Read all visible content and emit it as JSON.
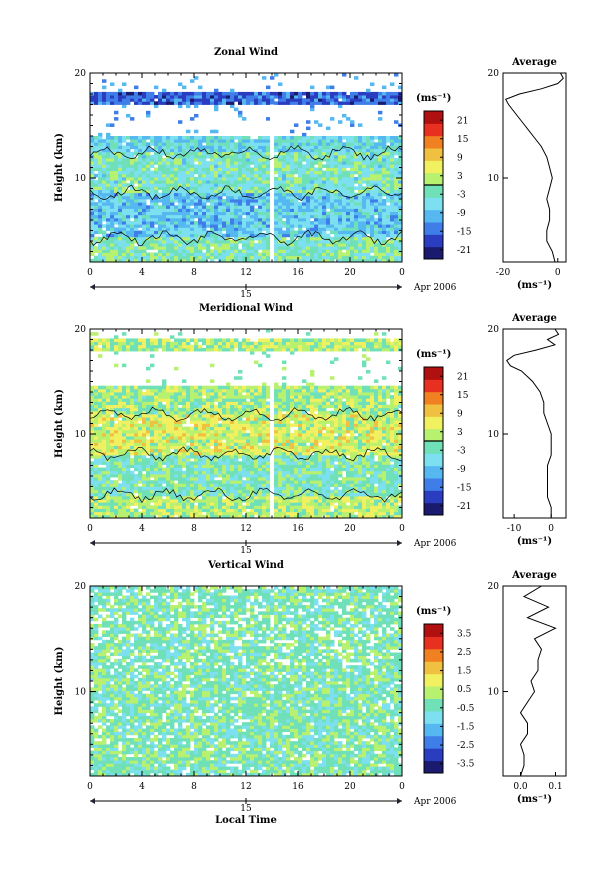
{
  "figure": {
    "x_axis_label": "Local Time",
    "date_label": "Apr 2006",
    "day_label": "15",
    "colorbar_unit": "(ms⁻¹)",
    "avg_title": "Average",
    "avg_unit": "(ms⁻¹)",
    "y_axis_label": "Height (km)"
  },
  "chart_data": [
    {
      "type": "heatmap",
      "title": "Zonal Wind",
      "ylabel": "Height (km)",
      "xlabel": "",
      "x_ticks": [
        "0",
        "4",
        "8",
        "12",
        "16",
        "20",
        "0"
      ],
      "y_ticks": [
        "10",
        "20"
      ],
      "xlim": [
        0,
        24
      ],
      "ylim": [
        2,
        20
      ],
      "colorbar_ticks": [
        "21",
        "15",
        "9",
        "3",
        "-3",
        "-9",
        "-15",
        "-21"
      ],
      "colorbar_range": [
        -24,
        24
      ],
      "contour_level": 0,
      "colormap": [
        "#1a1a6e",
        "#2a3cbf",
        "#3f7ee8",
        "#56b8f0",
        "#7de0f0",
        "#6fe0b8",
        "#b8f070",
        "#f0f060",
        "#f0c040",
        "#f08020",
        "#e83020",
        "#b01010"
      ],
      "bands": [
        {
          "from": 2,
          "to": 4.5,
          "value": -2
        },
        {
          "from": 4.5,
          "to": 8.5,
          "value": -8
        },
        {
          "from": 8.5,
          "to": 12.5,
          "value": -3
        },
        {
          "from": 12.5,
          "to": 14,
          "value": -6
        },
        {
          "from": 14,
          "to": 17,
          "value": 99
        },
        {
          "from": 17,
          "to": 18.2,
          "value": -16
        },
        {
          "from": 18.2,
          "to": 20,
          "value": 99
        }
      ],
      "average": {
        "title": "Average",
        "xlabel": "(ms⁻¹)",
        "x_ticks": [
          "-20",
          "0"
        ],
        "y_ticks": [
          "10",
          "20"
        ],
        "xlim": [
          -20,
          3
        ],
        "height": [
          2,
          3,
          4,
          5,
          6,
          7,
          8,
          9,
          10,
          11,
          12,
          13,
          14,
          15,
          16,
          17,
          17.5,
          18,
          18.5,
          19,
          19.5,
          20
        ],
        "values": [
          -1,
          -2,
          -4,
          -4,
          -3,
          -3,
          -4,
          -3,
          -2,
          -3,
          -4,
          -6,
          -9,
          -12,
          -15,
          -18,
          -19,
          -14,
          -6,
          0,
          2,
          1
        ]
      }
    },
    {
      "type": "heatmap",
      "title": "Meridional Wind",
      "ylabel": "Height (km)",
      "xlabel": "",
      "x_ticks": [
        "0",
        "4",
        "8",
        "12",
        "16",
        "20",
        "0"
      ],
      "y_ticks": [
        "10",
        "20"
      ],
      "xlim": [
        0,
        24
      ],
      "ylim": [
        2,
        20
      ],
      "colorbar_ticks": [
        "21",
        "15",
        "9",
        "3",
        "-3",
        "-9",
        "-15",
        "-21"
      ],
      "colorbar_range": [
        -24,
        24
      ],
      "contour_level": 0,
      "colormap": [
        "#1a1a6e",
        "#2a3cbf",
        "#3f7ee8",
        "#56b8f0",
        "#7de0f0",
        "#6fe0b8",
        "#b8f070",
        "#f0f060",
        "#f0c040",
        "#f08020",
        "#e83020",
        "#b01010"
      ],
      "bands": [
        {
          "from": 2,
          "to": 4,
          "value": 2
        },
        {
          "from": 4,
          "to": 8,
          "value": -2
        },
        {
          "from": 8,
          "to": 12,
          "value": 4
        },
        {
          "from": 12,
          "to": 14.5,
          "value": 1
        },
        {
          "from": 14.5,
          "to": 18,
          "value": 99
        },
        {
          "from": 18,
          "to": 19,
          "value": 2
        },
        {
          "from": 19,
          "to": 20,
          "value": 99
        }
      ],
      "average": {
        "title": "Average",
        "xlabel": "(ms⁻¹)",
        "x_ticks": [
          "-10",
          "0"
        ],
        "y_ticks": [
          "10",
          "20"
        ],
        "xlim": [
          -13,
          4
        ],
        "height": [
          2,
          3,
          4,
          5,
          6,
          7,
          8,
          9,
          10,
          11,
          12,
          13,
          14,
          15,
          16,
          16.5,
          17,
          17.5,
          18,
          18.5,
          19,
          19.5,
          20
        ],
        "values": [
          0,
          0,
          -1,
          -1,
          -1,
          -1,
          0,
          0,
          0,
          -1,
          -2,
          -2,
          -3,
          -5,
          -8,
          -11,
          -12,
          -10,
          -4,
          1,
          -1,
          2,
          1
        ]
      }
    },
    {
      "type": "heatmap",
      "title": "Vertical Wind",
      "ylabel": "Height (km)",
      "xlabel": "Local Time",
      "x_ticks": [
        "0",
        "4",
        "8",
        "12",
        "16",
        "20",
        "0"
      ],
      "y_ticks": [
        "10",
        "20"
      ],
      "xlim": [
        0,
        24
      ],
      "ylim": [
        2,
        20
      ],
      "colorbar_ticks": [
        "3.5",
        "2.5",
        "1.5",
        "0.5",
        "-0.5",
        "-1.5",
        "-2.5",
        "-3.5"
      ],
      "colorbar_range": [
        -4,
        4
      ],
      "contour_level": null,
      "colormap": [
        "#1a1a6e",
        "#2a3cbf",
        "#3f7ee8",
        "#56b8f0",
        "#7de0f0",
        "#6fe0b8",
        "#b8f070",
        "#f0f060",
        "#f0c040",
        "#f08020",
        "#e83020",
        "#b01010"
      ],
      "bands": [
        {
          "from": 2,
          "to": 20,
          "value": -0.3
        }
      ],
      "average": {
        "title": "Average",
        "xlabel": "(ms⁻¹)",
        "x_ticks": [
          "0.0",
          "0.1"
        ],
        "y_ticks": [
          "10",
          "20"
        ],
        "xlim": [
          -0.05,
          0.13
        ],
        "height": [
          2,
          3,
          4,
          5,
          6,
          7,
          8,
          9,
          10,
          11,
          12,
          13,
          14,
          15,
          16,
          17,
          18,
          19,
          20
        ],
        "values": [
          0.0,
          0.01,
          0.01,
          0.0,
          0.02,
          0.02,
          0.0,
          0.02,
          0.04,
          0.03,
          0.05,
          0.05,
          0.06,
          0.04,
          0.1,
          0.02,
          0.08,
          0.01,
          0.06
        ]
      }
    }
  ]
}
